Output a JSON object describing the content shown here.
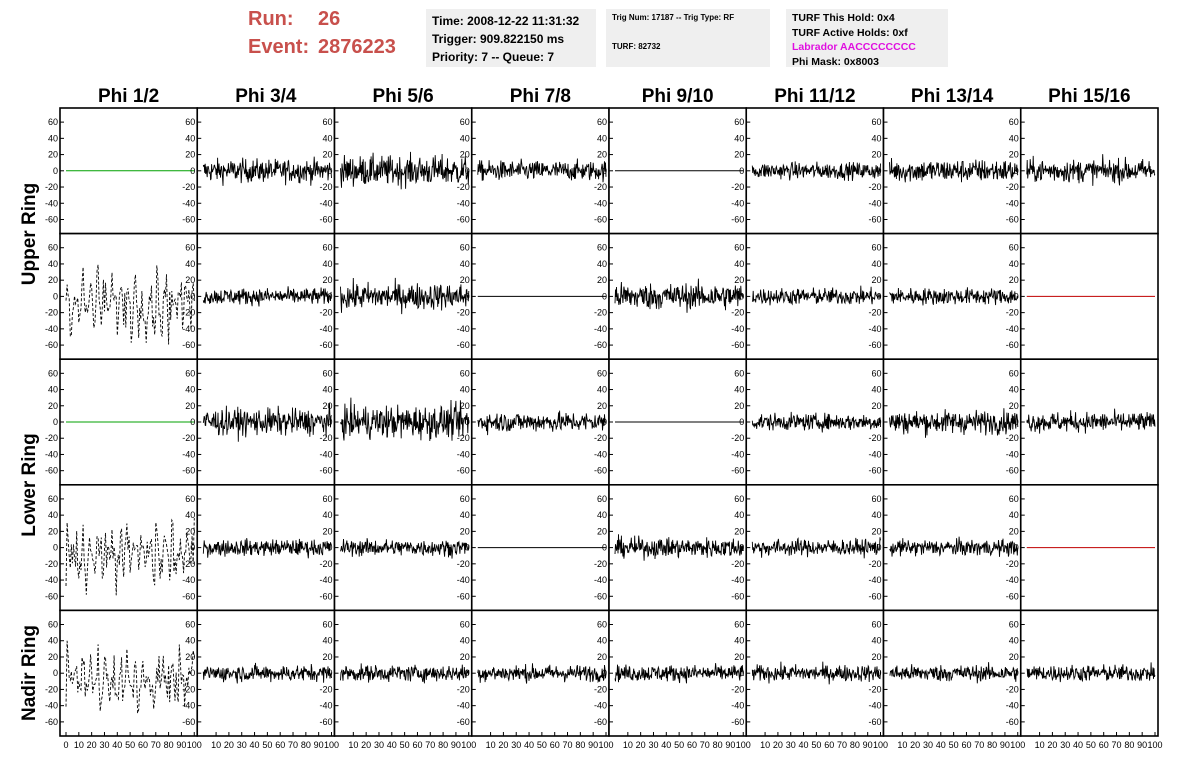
{
  "header": {
    "run_label": "Run:",
    "run_value": "26",
    "event_label": "Event:",
    "event_value": "2876223",
    "time": "Time: 2008-12-22 11:31:32",
    "trigger": "Trigger: 909.822150 ms",
    "priority": "Priority: 7 -- Queue: 7",
    "trig_num": "Trig Num: 17187 -- Trig Type: RF",
    "turf": "TURF: 82732",
    "turf_this_hold": "TURF This Hold: 0x4",
    "turf_active_holds": "TURF Active Holds: 0xf",
    "labrador": "Labrador AACCCCCCCC",
    "phi_mask": "Phi Mask: 0x8003"
  },
  "colors": {
    "header_red": "#c8504c",
    "labrador_magenta": "#e010e0",
    "info_bg": "#efefef",
    "dead_green": "#00a000",
    "dead_red": "#c00000",
    "trace": "#000000"
  },
  "chart_data": {
    "type": "line",
    "columns": [
      "Phi 1/2",
      "Phi 3/4",
      "Phi 5/6",
      "Phi 7/8",
      "Phi 9/10",
      "Phi 11/12",
      "Phi 13/14",
      "Phi 15/16"
    ],
    "row_groups": [
      "Upper Ring",
      "Lower Ring",
      "Nadir Ring"
    ],
    "xlim": [
      0,
      100
    ],
    "ylim": [
      -70,
      70
    ],
    "yticks": [
      -60,
      -40,
      -20,
      0,
      20,
      40,
      60
    ],
    "xticks": [
      0,
      10,
      20,
      30,
      40,
      50,
      60,
      70,
      80,
      90,
      100
    ],
    "panels": [
      [
        "flat-green",
        "trace",
        "trace",
        "trace",
        "flat-black",
        "trace",
        "trace",
        "trace"
      ],
      [
        "dashed",
        "trace",
        "trace",
        "flat-black",
        "trace",
        "trace",
        "trace",
        "flat-red"
      ],
      [
        "flat-green",
        "trace",
        "trace",
        "trace",
        "flat-black",
        "trace",
        "trace",
        "trace"
      ],
      [
        "dashed",
        "trace",
        "trace",
        "flat-black",
        "trace",
        "trace",
        "trace",
        "flat-red"
      ],
      [
        "dashed",
        "trace",
        "trace",
        "trace",
        "trace",
        "trace",
        "trace",
        "trace"
      ]
    ],
    "amplitudes": [
      [
        0,
        14,
        18,
        12,
        0,
        10,
        14,
        14
      ],
      [
        30,
        10,
        16,
        0,
        16,
        10,
        10,
        0
      ],
      [
        0,
        16,
        20,
        12,
        0,
        10,
        14,
        12
      ],
      [
        30,
        10,
        10,
        0,
        12,
        10,
        10,
        0
      ],
      [
        30,
        10,
        10,
        10,
        10,
        10,
        10,
        10
      ]
    ]
  }
}
